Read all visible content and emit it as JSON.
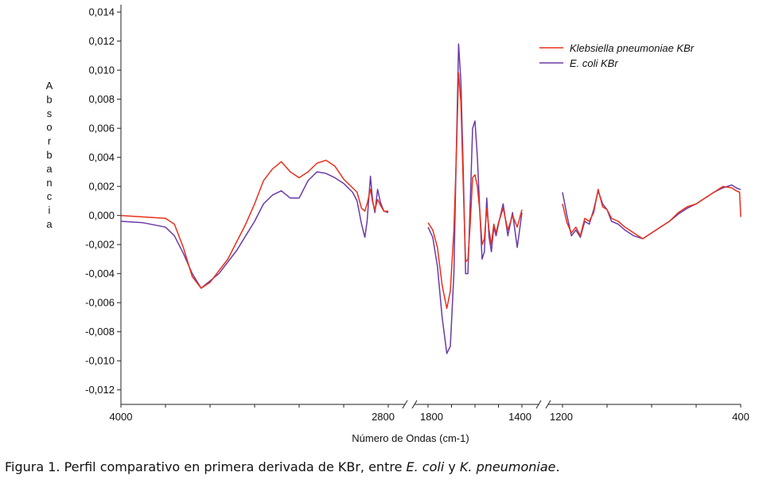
{
  "chart_data": {
    "type": "line",
    "xlabel": "Número de Ondas (cm-1)",
    "ylabel": "Absorbancia",
    "ylim": [
      -0.013,
      0.0145
    ],
    "y_ticks": [
      0.014,
      0.012,
      0.01,
      0.008,
      0.006,
      0.004,
      0.002,
      0.0,
      -0.002,
      -0.004,
      -0.006,
      -0.008,
      -0.01,
      -0.012
    ],
    "y_tick_labels": [
      "0,014",
      "0,012",
      "0,010",
      "0,008",
      "0,006",
      "0,004",
      "0,002",
      "0,000",
      "-0,002",
      "-0,004",
      "-0,006",
      "-0,008",
      "-0,010",
      "-0,012"
    ],
    "x_tick_labels": [
      "4000",
      "2800",
      "1800",
      "1400",
      "1200",
      "400"
    ],
    "x_axis_breaks": [
      [
        2800,
        1800
      ],
      [
        1400,
        1200
      ]
    ],
    "x_segments": [
      [
        4000,
        2800
      ],
      [
        1800,
        1400
      ],
      [
        1200,
        400
      ]
    ],
    "legend_position": "top-right",
    "series": [
      {
        "name": "Klebsiella pneumoniae KBr",
        "color": "#e8301c",
        "segments": [
          [
            [
              4000,
              0.0
            ],
            [
              3900,
              -0.0001
            ],
            [
              3800,
              -0.0002
            ],
            [
              3760,
              -0.0006
            ],
            [
              3720,
              -0.0022
            ],
            [
              3680,
              -0.0042
            ],
            [
              3640,
              -0.005
            ],
            [
              3600,
              -0.0046
            ],
            [
              3560,
              -0.0038
            ],
            [
              3520,
              -0.003
            ],
            [
              3480,
              -0.0018
            ],
            [
              3440,
              -0.0006
            ],
            [
              3400,
              0.0008
            ],
            [
              3360,
              0.0024
            ],
            [
              3320,
              0.0032
            ],
            [
              3280,
              0.0037
            ],
            [
              3240,
              0.003
            ],
            [
              3200,
              0.0026
            ],
            [
              3160,
              0.003
            ],
            [
              3120,
              0.0036
            ],
            [
              3080,
              0.0038
            ],
            [
              3040,
              0.0034
            ],
            [
              3000,
              0.0025
            ],
            [
              2960,
              0.0019
            ],
            [
              2940,
              0.0016
            ],
            [
              2920,
              0.0005
            ],
            [
              2905,
              0.0003
            ],
            [
              2895,
              0.0008
            ],
            [
              2880,
              0.0018
            ],
            [
              2870,
              0.0009
            ],
            [
              2860,
              0.0004
            ],
            [
              2848,
              0.0011
            ],
            [
              2835,
              0.0007
            ],
            [
              2820,
              0.0003
            ],
            [
              2800,
              0.0003
            ]
          ],
          [
            [
              1800,
              -0.0005
            ],
            [
              1780,
              -0.001
            ],
            [
              1760,
              -0.0022
            ],
            [
              1740,
              -0.0048
            ],
            [
              1720,
              -0.0064
            ],
            [
              1705,
              -0.0052
            ],
            [
              1690,
              -0.001
            ],
            [
              1680,
              0.0038
            ],
            [
              1670,
              0.0098
            ],
            [
              1660,
              0.0078
            ],
            [
              1650,
              0.002
            ],
            [
              1640,
              -0.0032
            ],
            [
              1630,
              -0.003
            ],
            [
              1620,
              -0.0005
            ],
            [
              1610,
              0.0026
            ],
            [
              1600,
              0.0028
            ],
            [
              1590,
              0.002
            ],
            [
              1580,
              0.0004
            ],
            [
              1570,
              -0.002
            ],
            [
              1560,
              -0.0016
            ],
            [
              1550,
              0.0005
            ],
            [
              1540,
              -0.001
            ],
            [
              1530,
              -0.002
            ],
            [
              1520,
              -0.0006
            ],
            [
              1510,
              -0.0012
            ],
            [
              1500,
              -0.0005
            ],
            [
              1480,
              0.0005
            ],
            [
              1460,
              -0.001
            ],
            [
              1440,
              0.0
            ],
            [
              1420,
              -0.0008
            ],
            [
              1400,
              0.0004
            ]
          ],
          [
            [
              1200,
              0.0008
            ],
            [
              1180,
              -0.0005
            ],
            [
              1160,
              -0.0012
            ],
            [
              1140,
              -0.0008
            ],
            [
              1120,
              -0.0014
            ],
            [
              1100,
              -0.0002
            ],
            [
              1080,
              -0.0004
            ],
            [
              1060,
              0.0002
            ],
            [
              1040,
              0.0018
            ],
            [
              1020,
              0.0006
            ],
            [
              1000,
              0.0004
            ],
            [
              980,
              -0.0002
            ],
            [
              950,
              -0.0004
            ],
            [
              920,
              -0.0008
            ],
            [
              900,
              -0.001
            ],
            [
              880,
              -0.0012
            ],
            [
              860,
              -0.0014
            ],
            [
              840,
              -0.0016
            ],
            [
              800,
              -0.0012
            ],
            [
              760,
              -0.0008
            ],
            [
              720,
              -0.0004
            ],
            [
              680,
              0.0002
            ],
            [
              640,
              0.0006
            ],
            [
              600,
              0.0008
            ],
            [
              560,
              0.0012
            ],
            [
              520,
              0.0016
            ],
            [
              480,
              0.002
            ],
            [
              440,
              0.0019
            ],
            [
              420,
              0.0017
            ],
            [
              405,
              0.0016
            ],
            [
              400,
              -0.0001
            ]
          ]
        ]
      },
      {
        "name": "E. coli KBr",
        "color": "#6a3ba6",
        "segments": [
          [
            [
              4000,
              -0.0004
            ],
            [
              3900,
              -0.0005
            ],
            [
              3800,
              -0.0008
            ],
            [
              3760,
              -0.0014
            ],
            [
              3720,
              -0.0026
            ],
            [
              3680,
              -0.004
            ],
            [
              3640,
              -0.005
            ],
            [
              3600,
              -0.0045
            ],
            [
              3560,
              -0.004
            ],
            [
              3520,
              -0.0032
            ],
            [
              3480,
              -0.0024
            ],
            [
              3440,
              -0.0014
            ],
            [
              3400,
              -0.0004
            ],
            [
              3360,
              0.0008
            ],
            [
              3320,
              0.0014
            ],
            [
              3280,
              0.0017
            ],
            [
              3240,
              0.0012
            ],
            [
              3200,
              0.0012
            ],
            [
              3160,
              0.0024
            ],
            [
              3120,
              0.003
            ],
            [
              3080,
              0.0029
            ],
            [
              3040,
              0.0026
            ],
            [
              3000,
              0.0022
            ],
            [
              2960,
              0.0016
            ],
            [
              2940,
              0.001
            ],
            [
              2920,
              -0.0006
            ],
            [
              2905,
              -0.0015
            ],
            [
              2895,
              -0.0004
            ],
            [
              2880,
              0.0027
            ],
            [
              2870,
              0.001
            ],
            [
              2860,
              0.0002
            ],
            [
              2848,
              0.0018
            ],
            [
              2835,
              0.0009
            ],
            [
              2820,
              0.0003
            ],
            [
              2800,
              0.0002
            ]
          ],
          [
            [
              1800,
              -0.0008
            ],
            [
              1780,
              -0.0015
            ],
            [
              1760,
              -0.0035
            ],
            [
              1740,
              -0.007
            ],
            [
              1720,
              -0.0095
            ],
            [
              1705,
              -0.009
            ],
            [
              1690,
              -0.004
            ],
            [
              1680,
              0.004
            ],
            [
              1670,
              0.0118
            ],
            [
              1660,
              0.0092
            ],
            [
              1650,
              0.003
            ],
            [
              1640,
              -0.004
            ],
            [
              1630,
              -0.004
            ],
            [
              1620,
              0.001
            ],
            [
              1610,
              0.006
            ],
            [
              1600,
              0.0065
            ],
            [
              1590,
              0.004
            ],
            [
              1580,
              0.0005
            ],
            [
              1570,
              -0.003
            ],
            [
              1560,
              -0.0025
            ],
            [
              1550,
              0.0012
            ],
            [
              1540,
              -0.0015
            ],
            [
              1530,
              -0.0025
            ],
            [
              1520,
              -0.0008
            ],
            [
              1510,
              -0.0014
            ],
            [
              1500,
              -0.0006
            ],
            [
              1480,
              0.0008
            ],
            [
              1460,
              -0.0014
            ],
            [
              1440,
              0.0002
            ],
            [
              1420,
              -0.0022
            ],
            [
              1400,
              0.0002
            ]
          ],
          [
            [
              1200,
              0.0016
            ],
            [
              1180,
              0.0
            ],
            [
              1160,
              -0.0014
            ],
            [
              1140,
              -0.001
            ],
            [
              1120,
              -0.0015
            ],
            [
              1100,
              -0.0004
            ],
            [
              1080,
              -0.0006
            ],
            [
              1060,
              0.0004
            ],
            [
              1040,
              0.0017
            ],
            [
              1020,
              0.0008
            ],
            [
              1000,
              0.0004
            ],
            [
              980,
              -0.0004
            ],
            [
              950,
              -0.0006
            ],
            [
              920,
              -0.001
            ],
            [
              900,
              -0.0012
            ],
            [
              880,
              -0.0014
            ],
            [
              860,
              -0.0015
            ],
            [
              840,
              -0.0016
            ],
            [
              800,
              -0.0012
            ],
            [
              760,
              -0.0008
            ],
            [
              720,
              -0.0004
            ],
            [
              680,
              0.0001
            ],
            [
              640,
              0.0005
            ],
            [
              600,
              0.0008
            ],
            [
              560,
              0.0012
            ],
            [
              520,
              0.0016
            ],
            [
              480,
              0.0019
            ],
            [
              440,
              0.0021
            ],
            [
              420,
              0.0019
            ],
            [
              405,
              0.0018
            ],
            [
              400,
              0.0018
            ]
          ]
        ]
      }
    ]
  },
  "caption": {
    "prefix": "Figura 1. Perfil comparativo en primera derivada de KBr, entre ",
    "italic1": "E. coli",
    "mid": " y ",
    "italic2": "K. pneumoniae",
    "suffix": "."
  }
}
